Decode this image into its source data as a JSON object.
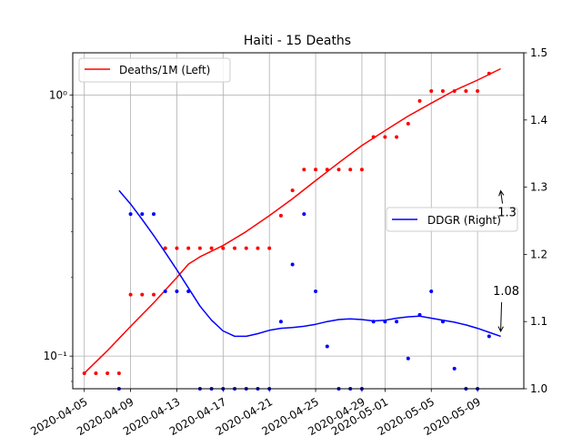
{
  "chart_data": {
    "type": "line",
    "title": "Haiti - 15 Deaths",
    "xlabel": "",
    "ylabel_left": "",
    "ylabel_right": "",
    "x_ticks": [
      "2020-04-05",
      "2020-04-09",
      "2020-04-13",
      "2020-04-17",
      "2020-04-21",
      "2020-04-25",
      "2020-04-29",
      "2020-05-01",
      "2020-05-05",
      "2020-05-09"
    ],
    "x_range": [
      "2020-04-04",
      "2020-05-13"
    ],
    "left_axis": {
      "scale": "log",
      "range": [
        0.075,
        1.45
      ],
      "major_ticks": [
        {
          "value": 0.1,
          "label": "10⁻¹"
        },
        {
          "value": 1,
          "label": "10⁰"
        }
      ]
    },
    "right_axis": {
      "scale": "linear",
      "range": [
        1.0,
        1.5
      ],
      "ticks": [
        "1.0",
        "1.1",
        "1.2",
        "1.3",
        "1.4",
        "1.5"
      ]
    },
    "grid": true,
    "legend_left": {
      "label": "Deaths/1M (Left)",
      "position": "top-left"
    },
    "legend_right": {
      "label": "DDGR (Right)",
      "position": "center-right"
    },
    "annotations": [
      {
        "text": "1.3",
        "target_date": "2020-05-11",
        "target_value": 1.3
      },
      {
        "text": "1.08",
        "target_date": "2020-05-11",
        "target_value": 1.08
      }
    ],
    "series": [
      {
        "name": "Deaths/1M (Left)",
        "axis": "left",
        "color": "#ff0000",
        "style": "line",
        "points": [
          [
            "2020-04-05",
            0.086
          ],
          [
            "2020-04-07",
            0.105
          ],
          [
            "2020-04-09",
            0.13
          ],
          [
            "2020-04-11",
            0.16
          ],
          [
            "2020-04-13",
            0.2
          ],
          [
            "2020-04-14",
            0.225
          ],
          [
            "2020-04-15",
            0.24
          ],
          [
            "2020-04-17",
            0.265
          ],
          [
            "2020-04-19",
            0.3
          ],
          [
            "2020-04-21",
            0.345
          ],
          [
            "2020-04-23",
            0.4
          ],
          [
            "2020-04-25",
            0.47
          ],
          [
            "2020-04-27",
            0.55
          ],
          [
            "2020-04-29",
            0.64
          ],
          [
            "2020-05-01",
            0.73
          ],
          [
            "2020-05-03",
            0.83
          ],
          [
            "2020-05-05",
            0.93
          ],
          [
            "2020-05-07",
            1.04
          ],
          [
            "2020-05-09",
            1.14
          ],
          [
            "2020-05-11",
            1.26
          ]
        ]
      },
      {
        "name": "",
        "axis": "left",
        "color": "#ff0000",
        "style": "dots",
        "points": [
          [
            "2020-04-05",
            0.086
          ],
          [
            "2020-04-06",
            0.086
          ],
          [
            "2020-04-07",
            0.086
          ],
          [
            "2020-04-08",
            0.086
          ],
          [
            "2020-04-09",
            0.172
          ],
          [
            "2020-04-10",
            0.172
          ],
          [
            "2020-04-11",
            0.172
          ],
          [
            "2020-04-12",
            0.259
          ],
          [
            "2020-04-13",
            0.259
          ],
          [
            "2020-04-14",
            0.259
          ],
          [
            "2020-04-15",
            0.259
          ],
          [
            "2020-04-16",
            0.259
          ],
          [
            "2020-04-17",
            0.259
          ],
          [
            "2020-04-18",
            0.259
          ],
          [
            "2020-04-19",
            0.259
          ],
          [
            "2020-04-20",
            0.259
          ],
          [
            "2020-04-21",
            0.259
          ],
          [
            "2020-04-22",
            0.345
          ],
          [
            "2020-04-23",
            0.431
          ],
          [
            "2020-04-24",
            0.518
          ],
          [
            "2020-04-25",
            0.518
          ],
          [
            "2020-04-26",
            0.518
          ],
          [
            "2020-04-27",
            0.518
          ],
          [
            "2020-04-28",
            0.518
          ],
          [
            "2020-04-29",
            0.518
          ],
          [
            "2020-04-30",
            0.69
          ],
          [
            "2020-05-01",
            0.69
          ],
          [
            "2020-05-02",
            0.69
          ],
          [
            "2020-05-03",
            0.776
          ],
          [
            "2020-05-04",
            0.949
          ],
          [
            "2020-05-05",
            1.035
          ],
          [
            "2020-05-06",
            1.035
          ],
          [
            "2020-05-07",
            1.035
          ],
          [
            "2020-05-08",
            1.035
          ],
          [
            "2020-05-09",
            1.035
          ],
          [
            "2020-05-10",
            1.208
          ]
        ]
      },
      {
        "name": "DDGR (Right)",
        "axis": "right",
        "color": "#0000ff",
        "style": "line",
        "points": [
          [
            "2020-04-08",
            1.295
          ],
          [
            "2020-04-09",
            1.275
          ],
          [
            "2020-04-10",
            1.252
          ],
          [
            "2020-04-11",
            1.228
          ],
          [
            "2020-04-12",
            1.203
          ],
          [
            "2020-04-13",
            1.177
          ],
          [
            "2020-04-14",
            1.15
          ],
          [
            "2020-04-15",
            1.123
          ],
          [
            "2020-04-16",
            1.102
          ],
          [
            "2020-04-17",
            1.086
          ],
          [
            "2020-04-18",
            1.078
          ],
          [
            "2020-04-19",
            1.078
          ],
          [
            "2020-04-20",
            1.082
          ],
          [
            "2020-04-21",
            1.087
          ],
          [
            "2020-04-22",
            1.09
          ],
          [
            "2020-04-23",
            1.091
          ],
          [
            "2020-04-24",
            1.093
          ],
          [
            "2020-04-25",
            1.096
          ],
          [
            "2020-04-26",
            1.1
          ],
          [
            "2020-04-27",
            1.103
          ],
          [
            "2020-04-28",
            1.104
          ],
          [
            "2020-04-29",
            1.103
          ],
          [
            "2020-04-30",
            1.101
          ],
          [
            "2020-05-01",
            1.102
          ],
          [
            "2020-05-02",
            1.105
          ],
          [
            "2020-05-03",
            1.107
          ],
          [
            "2020-05-04",
            1.108
          ],
          [
            "2020-05-05",
            1.105
          ],
          [
            "2020-05-06",
            1.102
          ],
          [
            "2020-05-07",
            1.099
          ],
          [
            "2020-05-08",
            1.095
          ],
          [
            "2020-05-09",
            1.09
          ],
          [
            "2020-05-10",
            1.084
          ],
          [
            "2020-05-11",
            1.078
          ]
        ]
      },
      {
        "name": "",
        "axis": "right",
        "color": "#0000ff",
        "style": "dots",
        "points": [
          [
            "2020-04-08",
            1.0
          ],
          [
            "2020-04-09",
            1.26
          ],
          [
            "2020-04-10",
            1.26
          ],
          [
            "2020-04-11",
            1.26
          ],
          [
            "2020-04-12",
            1.145
          ],
          [
            "2020-04-13",
            1.145
          ],
          [
            "2020-04-14",
            1.145
          ],
          [
            "2020-04-15",
            1.0
          ],
          [
            "2020-04-16",
            1.0
          ],
          [
            "2020-04-17",
            1.0
          ],
          [
            "2020-04-18",
            1.0
          ],
          [
            "2020-04-19",
            1.0
          ],
          [
            "2020-04-20",
            1.0
          ],
          [
            "2020-04-21",
            1.0
          ],
          [
            "2020-04-22",
            1.1
          ],
          [
            "2020-04-23",
            1.185
          ],
          [
            "2020-04-24",
            1.26
          ],
          [
            "2020-04-25",
            1.145
          ],
          [
            "2020-04-26",
            1.063
          ],
          [
            "2020-04-27",
            1.0
          ],
          [
            "2020-04-28",
            1.0
          ],
          [
            "2020-04-29",
            1.0
          ],
          [
            "2020-04-30",
            1.1
          ],
          [
            "2020-05-01",
            1.1
          ],
          [
            "2020-05-02",
            1.1
          ],
          [
            "2020-05-03",
            1.045
          ],
          [
            "2020-05-04",
            1.11
          ],
          [
            "2020-05-05",
            1.145
          ],
          [
            "2020-05-06",
            1.1
          ],
          [
            "2020-05-07",
            1.03
          ],
          [
            "2020-05-08",
            1.0
          ],
          [
            "2020-05-09",
            1.0
          ],
          [
            "2020-05-10",
            1.078
          ]
        ]
      }
    ]
  }
}
